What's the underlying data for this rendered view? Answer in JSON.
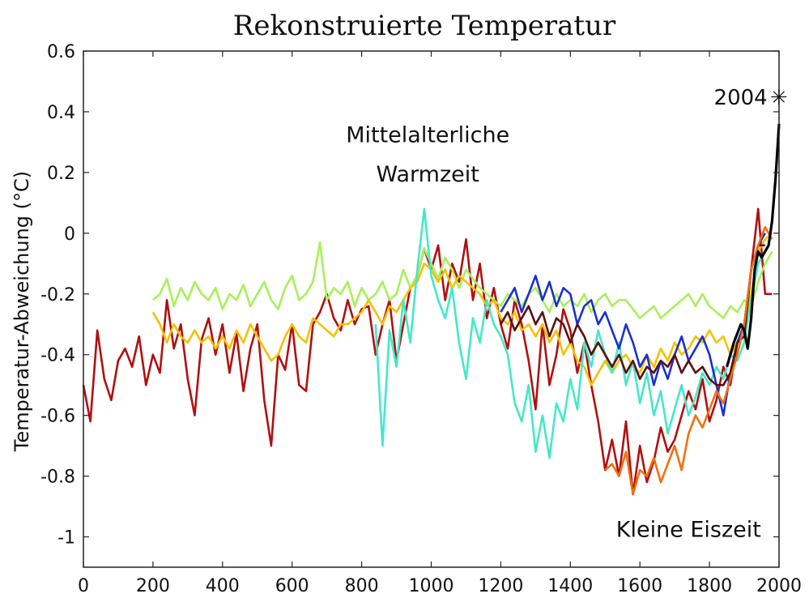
{
  "chart_data": {
    "type": "line",
    "title": "Rekonstruierte Temperatur",
    "xlabel": "",
    "ylabel": "Temperatur-Abweichung (°C)",
    "xlim": [
      0,
      2000
    ],
    "ylim": [
      -1.1,
      0.6
    ],
    "x_ticks": [
      0,
      200,
      400,
      600,
      800,
      1000,
      1200,
      1400,
      1600,
      1800,
      2000
    ],
    "y_ticks": [
      0.6,
      0.4,
      0.2,
      0,
      -0.2,
      -0.4,
      -0.6,
      -0.8,
      -1
    ],
    "y_tick_labels": [
      "0.6",
      "0.4",
      "0.2",
      "0",
      "-0.2",
      "-0.4",
      "-0.6",
      "-0.8",
      "-1"
    ],
    "grid": false,
    "annotations": [
      {
        "text": "Mittelalterliche",
        "x": 990,
        "y": 0.3
      },
      {
        "text": "Warmzeit",
        "x": 990,
        "y": 0.17
      },
      {
        "text": "Kleine Eiszeit",
        "x": 1740,
        "y": -1.0
      }
    ],
    "marker": {
      "label": "2004",
      "symbol": "✳",
      "x": 2004,
      "y": 0.45
    },
    "series": [
      {
        "color": "#b01010",
        "x": [
          0,
          20,
          40,
          60,
          80,
          100,
          120,
          140,
          160,
          180,
          200,
          220,
          240,
          260,
          280,
          300,
          320,
          340,
          360,
          380,
          400,
          420,
          440,
          460,
          480,
          500,
          520,
          540,
          560,
          580,
          600,
          620,
          640,
          660,
          680,
          700,
          720,
          740,
          760,
          780,
          800,
          820,
          840,
          860,
          880,
          900,
          920,
          940,
          960,
          980,
          1000,
          1020,
          1040,
          1060,
          1080,
          1100,
          1120,
          1140,
          1160,
          1180,
          1200,
          1220,
          1240,
          1260,
          1280,
          1300,
          1320,
          1340,
          1360,
          1380,
          1400,
          1420,
          1440,
          1460,
          1480,
          1500,
          1520,
          1540,
          1560,
          1580,
          1600,
          1620,
          1640,
          1660,
          1680,
          1700,
          1720,
          1740,
          1760,
          1780,
          1800,
          1820,
          1840,
          1860,
          1880,
          1900,
          1920,
          1940,
          1960,
          1980
        ],
        "y": [
          -0.5,
          -0.62,
          -0.32,
          -0.48,
          -0.55,
          -0.42,
          -0.38,
          -0.44,
          -0.34,
          -0.5,
          -0.4,
          -0.46,
          -0.22,
          -0.38,
          -0.3,
          -0.48,
          -0.6,
          -0.35,
          -0.28,
          -0.4,
          -0.3,
          -0.46,
          -0.33,
          -0.52,
          -0.38,
          -0.3,
          -0.55,
          -0.7,
          -0.4,
          -0.45,
          -0.3,
          -0.5,
          -0.52,
          -0.3,
          -0.26,
          -0.2,
          -0.28,
          -0.32,
          -0.22,
          -0.3,
          -0.25,
          -0.24,
          -0.4,
          -0.3,
          -0.22,
          -0.42,
          -0.3,
          -0.18,
          -0.14,
          -0.05,
          -0.12,
          -0.04,
          -0.22,
          -0.1,
          -0.16,
          -0.02,
          -0.22,
          -0.1,
          -0.28,
          -0.18,
          -0.3,
          -0.38,
          -0.22,
          -0.3,
          -0.42,
          -0.58,
          -0.3,
          -0.5,
          -0.4,
          -0.25,
          -0.32,
          -0.46,
          -0.36,
          -0.5,
          -0.62,
          -0.78,
          -0.68,
          -0.8,
          -0.62,
          -0.86,
          -0.7,
          -0.82,
          -0.75,
          -0.64,
          -0.72,
          -0.68,
          -0.6,
          -0.52,
          -0.58,
          -0.48,
          -0.62,
          -0.55,
          -0.44,
          -0.5,
          -0.36,
          -0.3,
          -0.12,
          0.08,
          -0.2,
          -0.2
        ]
      },
      {
        "color": "#a8f05a",
        "x": [
          200,
          220,
          240,
          260,
          280,
          300,
          320,
          340,
          360,
          380,
          400,
          420,
          440,
          460,
          480,
          500,
          520,
          540,
          560,
          580,
          600,
          620,
          640,
          660,
          680,
          700,
          720,
          740,
          760,
          780,
          800,
          820,
          840,
          860,
          880,
          900,
          920,
          940,
          960,
          980,
          1000,
          1020,
          1040,
          1060,
          1080,
          1100,
          1120,
          1140,
          1160,
          1180,
          1200,
          1220,
          1240,
          1260,
          1280,
          1300,
          1320,
          1340,
          1360,
          1380,
          1400,
          1420,
          1440,
          1460,
          1480,
          1500,
          1520,
          1540,
          1560,
          1580,
          1600,
          1620,
          1640,
          1660,
          1680,
          1700,
          1720,
          1740,
          1760,
          1780,
          1800,
          1820,
          1840,
          1860,
          1880,
          1900,
          1920,
          1940,
          1960,
          1980
        ],
        "y": [
          -0.22,
          -0.2,
          -0.15,
          -0.24,
          -0.18,
          -0.22,
          -0.16,
          -0.2,
          -0.22,
          -0.18,
          -0.25,
          -0.2,
          -0.22,
          -0.17,
          -0.24,
          -0.2,
          -0.16,
          -0.22,
          -0.25,
          -0.18,
          -0.14,
          -0.22,
          -0.2,
          -0.16,
          -0.03,
          -0.22,
          -0.18,
          -0.2,
          -0.16,
          -0.24,
          -0.18,
          -0.22,
          -0.2,
          -0.16,
          -0.22,
          -0.2,
          -0.12,
          -0.18,
          -0.14,
          -0.05,
          -0.1,
          -0.15,
          -0.08,
          -0.12,
          -0.18,
          -0.12,
          -0.15,
          -0.18,
          -0.2,
          -0.22,
          -0.24,
          -0.2,
          -0.22,
          -0.24,
          -0.2,
          -0.18,
          -0.22,
          -0.26,
          -0.2,
          -0.24,
          -0.22,
          -0.24,
          -0.2,
          -0.26,
          -0.22,
          -0.2,
          -0.24,
          -0.22,
          -0.22,
          -0.25,
          -0.28,
          -0.26,
          -0.24,
          -0.28,
          -0.26,
          -0.24,
          -0.22,
          -0.2,
          -0.24,
          -0.2,
          -0.24,
          -0.26,
          -0.28,
          -0.24,
          -0.26,
          -0.22,
          -0.24,
          -0.16,
          -0.1,
          -0.06
        ]
      },
      {
        "color": "#f2c200",
        "x": [
          200,
          220,
          240,
          260,
          280,
          300,
          320,
          340,
          360,
          380,
          400,
          420,
          440,
          460,
          480,
          500,
          520,
          540,
          560,
          580,
          600,
          620,
          640,
          660,
          680,
          700,
          720,
          740,
          760,
          780,
          800,
          820,
          840,
          860,
          880,
          900,
          920,
          940,
          960,
          980,
          1000,
          1020,
          1040,
          1060,
          1080,
          1100,
          1120,
          1140,
          1160,
          1180,
          1200,
          1220,
          1240,
          1260,
          1280,
          1300,
          1320,
          1340,
          1360,
          1380,
          1400,
          1420,
          1440,
          1460,
          1480,
          1500,
          1520,
          1540,
          1560,
          1580,
          1600,
          1620,
          1640,
          1660,
          1680,
          1700,
          1720,
          1740,
          1760,
          1780,
          1800,
          1820,
          1840,
          1860,
          1880,
          1900,
          1920,
          1940,
          1960,
          1980
        ],
        "y": [
          -0.26,
          -0.3,
          -0.36,
          -0.3,
          -0.34,
          -0.36,
          -0.32,
          -0.36,
          -0.34,
          -0.38,
          -0.34,
          -0.38,
          -0.32,
          -0.36,
          -0.3,
          -0.34,
          -0.38,
          -0.42,
          -0.4,
          -0.34,
          -0.3,
          -0.34,
          -0.36,
          -0.28,
          -0.3,
          -0.32,
          -0.34,
          -0.3,
          -0.3,
          -0.28,
          -0.26,
          -0.22,
          -0.26,
          -0.3,
          -0.24,
          -0.26,
          -0.22,
          -0.18,
          -0.16,
          -0.1,
          -0.12,
          -0.16,
          -0.12,
          -0.18,
          -0.14,
          -0.16,
          -0.18,
          -0.2,
          -0.24,
          -0.22,
          -0.28,
          -0.3,
          -0.26,
          -0.32,
          -0.3,
          -0.34,
          -0.3,
          -0.36,
          -0.32,
          -0.4,
          -0.36,
          -0.42,
          -0.44,
          -0.5,
          -0.46,
          -0.42,
          -0.46,
          -0.42,
          -0.4,
          -0.44,
          -0.46,
          -0.4,
          -0.44,
          -0.38,
          -0.42,
          -0.36,
          -0.4,
          -0.38,
          -0.34,
          -0.36,
          -0.32,
          -0.36,
          -0.34,
          -0.4,
          -0.36,
          -0.3,
          -0.2,
          -0.06,
          -0.02,
          0.0
        ]
      },
      {
        "color": "#44e8c8",
        "x": [
          840,
          860,
          880,
          900,
          920,
          940,
          960,
          980,
          1000,
          1020,
          1040,
          1060,
          1080,
          1100,
          1120,
          1140,
          1160,
          1180,
          1200,
          1220,
          1240,
          1260,
          1280,
          1300,
          1320,
          1340,
          1360,
          1380,
          1400,
          1420,
          1440,
          1460,
          1480,
          1500,
          1520,
          1540,
          1560,
          1580,
          1600,
          1620,
          1640,
          1660,
          1680,
          1700,
          1720,
          1740,
          1760,
          1780,
          1800,
          1820,
          1840,
          1860,
          1880,
          1900,
          1920,
          1940,
          1960
        ],
        "y": [
          -0.3,
          -0.7,
          -0.32,
          -0.44,
          -0.22,
          -0.36,
          -0.12,
          0.08,
          -0.14,
          -0.22,
          -0.28,
          -0.18,
          -0.36,
          -0.48,
          -0.28,
          -0.36,
          -0.22,
          -0.3,
          -0.34,
          -0.4,
          -0.56,
          -0.62,
          -0.5,
          -0.72,
          -0.6,
          -0.74,
          -0.56,
          -0.62,
          -0.48,
          -0.58,
          -0.36,
          -0.44,
          -0.32,
          -0.4,
          -0.46,
          -0.36,
          -0.5,
          -0.42,
          -0.56,
          -0.46,
          -0.6,
          -0.52,
          -0.66,
          -0.58,
          -0.5,
          -0.6,
          -0.54,
          -0.46,
          -0.5,
          -0.44,
          -0.48,
          -0.4,
          -0.42,
          -0.36,
          -0.22,
          -0.1,
          -0.06
        ]
      },
      {
        "color": "#1a2fd0",
        "x": [
          1200,
          1220,
          1240,
          1260,
          1280,
          1300,
          1320,
          1340,
          1360,
          1380,
          1400,
          1420,
          1440,
          1460,
          1480,
          1500,
          1520,
          1540,
          1560,
          1580,
          1600,
          1620,
          1640,
          1660,
          1680,
          1700,
          1720,
          1740,
          1760,
          1780,
          1800,
          1820,
          1840,
          1860,
          1880,
          1900,
          1920,
          1940,
          1960
        ],
        "y": [
          -0.26,
          -0.22,
          -0.18,
          -0.26,
          -0.2,
          -0.14,
          -0.22,
          -0.16,
          -0.24,
          -0.18,
          -0.2,
          -0.3,
          -0.24,
          -0.22,
          -0.3,
          -0.26,
          -0.32,
          -0.38,
          -0.3,
          -0.36,
          -0.44,
          -0.4,
          -0.5,
          -0.42,
          -0.48,
          -0.4,
          -0.34,
          -0.42,
          -0.38,
          -0.34,
          -0.4,
          -0.5,
          -0.6,
          -0.46,
          -0.36,
          -0.3,
          -0.12,
          -0.04,
          0.0
        ]
      },
      {
        "color": "#5a1010",
        "x": [
          1200,
          1220,
          1240,
          1260,
          1280,
          1300,
          1320,
          1340,
          1360,
          1380,
          1400,
          1420,
          1440,
          1460,
          1480,
          1500,
          1520,
          1540,
          1560,
          1580,
          1600,
          1620,
          1640,
          1660,
          1680,
          1700,
          1720,
          1740,
          1760,
          1780,
          1800,
          1820,
          1840,
          1860,
          1880,
          1900,
          1920,
          1940,
          1960
        ],
        "y": [
          -0.3,
          -0.26,
          -0.32,
          -0.28,
          -0.24,
          -0.3,
          -0.26,
          -0.34,
          -0.28,
          -0.3,
          -0.36,
          -0.3,
          -0.34,
          -0.4,
          -0.36,
          -0.4,
          -0.44,
          -0.4,
          -0.46,
          -0.42,
          -0.48,
          -0.44,
          -0.46,
          -0.42,
          -0.44,
          -0.4,
          -0.46,
          -0.42,
          -0.46,
          -0.44,
          -0.48,
          -0.5,
          -0.5,
          -0.46,
          -0.36,
          -0.34,
          -0.12,
          -0.04,
          -0.04
        ]
      },
      {
        "color": "#f07010",
        "x": [
          1500,
          1520,
          1540,
          1560,
          1580,
          1600,
          1620,
          1640,
          1660,
          1680,
          1700,
          1720,
          1740,
          1760,
          1780,
          1800,
          1820,
          1840,
          1860,
          1880,
          1900,
          1920,
          1940,
          1960,
          1980
        ],
        "y": [
          -0.78,
          -0.76,
          -0.8,
          -0.72,
          -0.86,
          -0.78,
          -0.8,
          -0.74,
          -0.82,
          -0.76,
          -0.7,
          -0.78,
          -0.66,
          -0.6,
          -0.64,
          -0.58,
          -0.52,
          -0.56,
          -0.48,
          -0.4,
          -0.3,
          -0.12,
          -0.04,
          0.02,
          -0.02
        ]
      },
      {
        "color": "#000000",
        "x": [
          1850,
          1870,
          1890,
          1900,
          1910,
          1920,
          1930,
          1940,
          1950,
          1960,
          1970,
          1980,
          1990,
          2000
        ],
        "y": [
          -0.44,
          -0.36,
          -0.3,
          -0.32,
          -0.38,
          -0.28,
          -0.12,
          -0.06,
          -0.08,
          -0.06,
          -0.04,
          0.04,
          0.18,
          0.36
        ]
      }
    ]
  }
}
